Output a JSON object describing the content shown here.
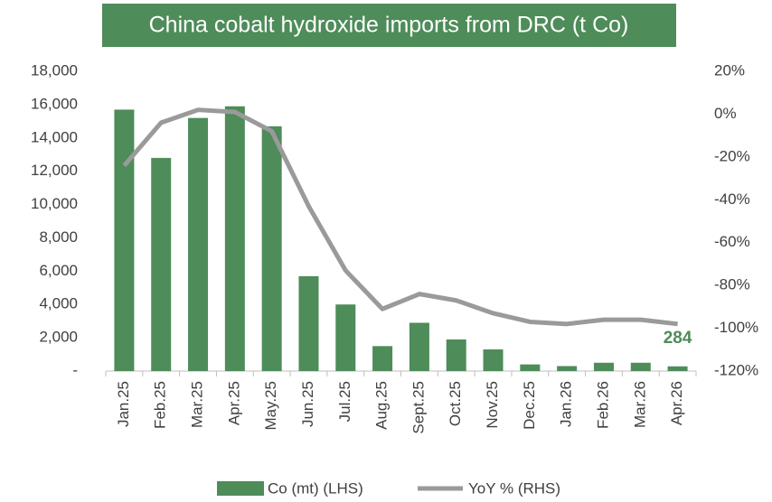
{
  "chart_data": {
    "type": "bar-line",
    "title": "China cobalt hydroxide imports from DRC (t Co)",
    "categories": [
      "Jan.25",
      "Feb.25",
      "Mar.25",
      "Apr.25",
      "May.25",
      "Jun.25",
      "Jul.25",
      "Aug.25",
      "Sept.25",
      "Oct.25",
      "Nov.25",
      "Dec.25",
      "Jan.26",
      "Feb.26",
      "Mar.26",
      "Apr.26"
    ],
    "series": [
      {
        "name": "Co (mt) (LHS)",
        "color": "#4e8c59",
        "type": "bar",
        "values": [
          15700,
          12800,
          15200,
          15900,
          14700,
          5700,
          4000,
          1500,
          2900,
          1900,
          1300,
          400,
          300,
          500,
          500,
          284
        ],
        "data_labels": {
          "15": "284"
        }
      },
      {
        "name": "YoY % (RHS)",
        "color": "#9a9a9a",
        "type": "line",
        "axis": "y2",
        "values": [
          -24,
          -4,
          2,
          1,
          -8,
          -43,
          -73,
          -91,
          -84,
          -87,
          -93,
          -97,
          -98,
          -96,
          -96,
          -98
        ]
      }
    ],
    "ylim": [
      0,
      18000
    ],
    "yticks": [
      {
        "value": 0,
        "label": "-"
      },
      {
        "value": 2000,
        "label": "2,000"
      },
      {
        "value": 4000,
        "label": "4,000"
      },
      {
        "value": 6000,
        "label": "6,000"
      },
      {
        "value": 8000,
        "label": "8,000"
      },
      {
        "value": 10000,
        "label": "10,000"
      },
      {
        "value": 12000,
        "label": "12,000"
      },
      {
        "value": 14000,
        "label": "14,000"
      },
      {
        "value": 16000,
        "label": "16,000"
      },
      {
        "value": 18000,
        "label": "18,000"
      }
    ],
    "y2lim": [
      -120,
      20
    ],
    "y2ticks": [
      {
        "value": -120,
        "label": "-120%"
      },
      {
        "value": -100,
        "label": "-100%"
      },
      {
        "value": -80,
        "label": "-80%"
      },
      {
        "value": -60,
        "label": "-60%"
      },
      {
        "value": -40,
        "label": "-40%"
      },
      {
        "value": -20,
        "label": "-20%"
      },
      {
        "value": 0,
        "label": "0%"
      },
      {
        "value": 20,
        "label": "20%"
      }
    ],
    "legend": "bottom",
    "grid": false
  }
}
